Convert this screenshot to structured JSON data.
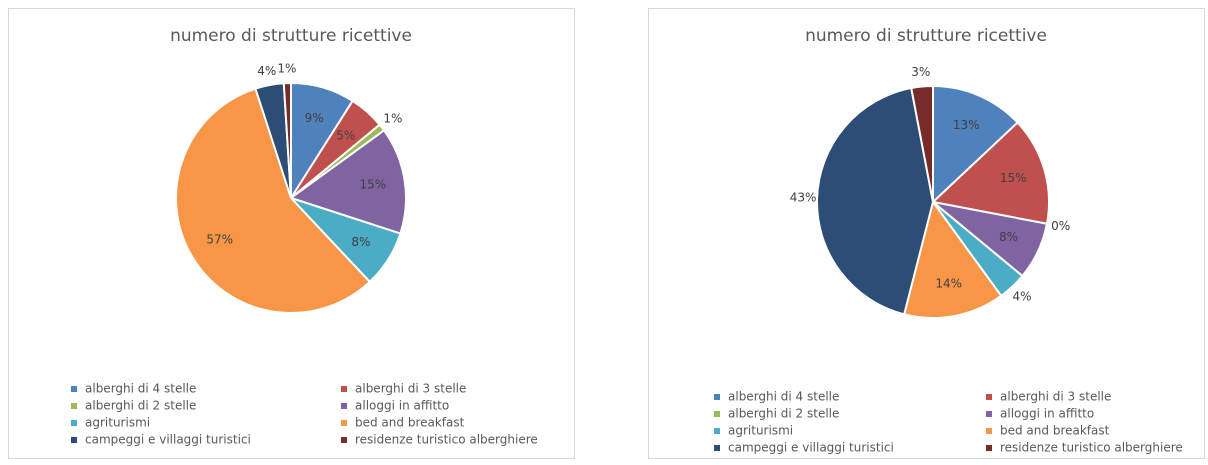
{
  "chart_data": [
    {
      "type": "pie",
      "title": "numero di strutture ricettive",
      "categories": [
        "alberghi di 4 stelle",
        "alberghi di 3 stelle",
        "alberghi di 2 stelle",
        "alloggi in affitto",
        "agriturismi",
        "bed and breakfast",
        "campeggi e villaggi turistici",
        "residenze turistico alberghiere"
      ],
      "values": [
        9,
        5,
        1,
        15,
        8,
        57,
        4,
        1
      ],
      "value_labels": [
        "9%",
        "5%",
        "1%",
        "15%",
        "8%",
        "57%",
        "4%",
        "1%"
      ],
      "colors": [
        "#4f81bd",
        "#c0504d",
        "#9bbb59",
        "#8064a2",
        "#4bacc6",
        "#f79646",
        "#2c4d75",
        "#772c2a"
      ],
      "legend": "bottom"
    },
    {
      "type": "pie",
      "title": "numero di strutture ricettive",
      "categories": [
        "alberghi di 4 stelle",
        "alberghi di 3 stelle",
        "alberghi di 2 stelle",
        "alloggi in affitto",
        "agriturismi",
        "bed and breakfast",
        "campeggi e villaggi turistici",
        "residenze turistico alberghiere"
      ],
      "values": [
        13,
        15,
        0,
        8,
        4,
        14,
        43,
        3
      ],
      "value_labels": [
        "13%",
        "15%",
        "0%",
        "8%",
        "4%",
        "14%",
        "43%",
        "3%"
      ],
      "colors": [
        "#4f81bd",
        "#c0504d",
        "#9bbb59",
        "#8064a2",
        "#4bacc6",
        "#f79646",
        "#2c4d75",
        "#772c2a"
      ],
      "legend": "bottom"
    }
  ]
}
